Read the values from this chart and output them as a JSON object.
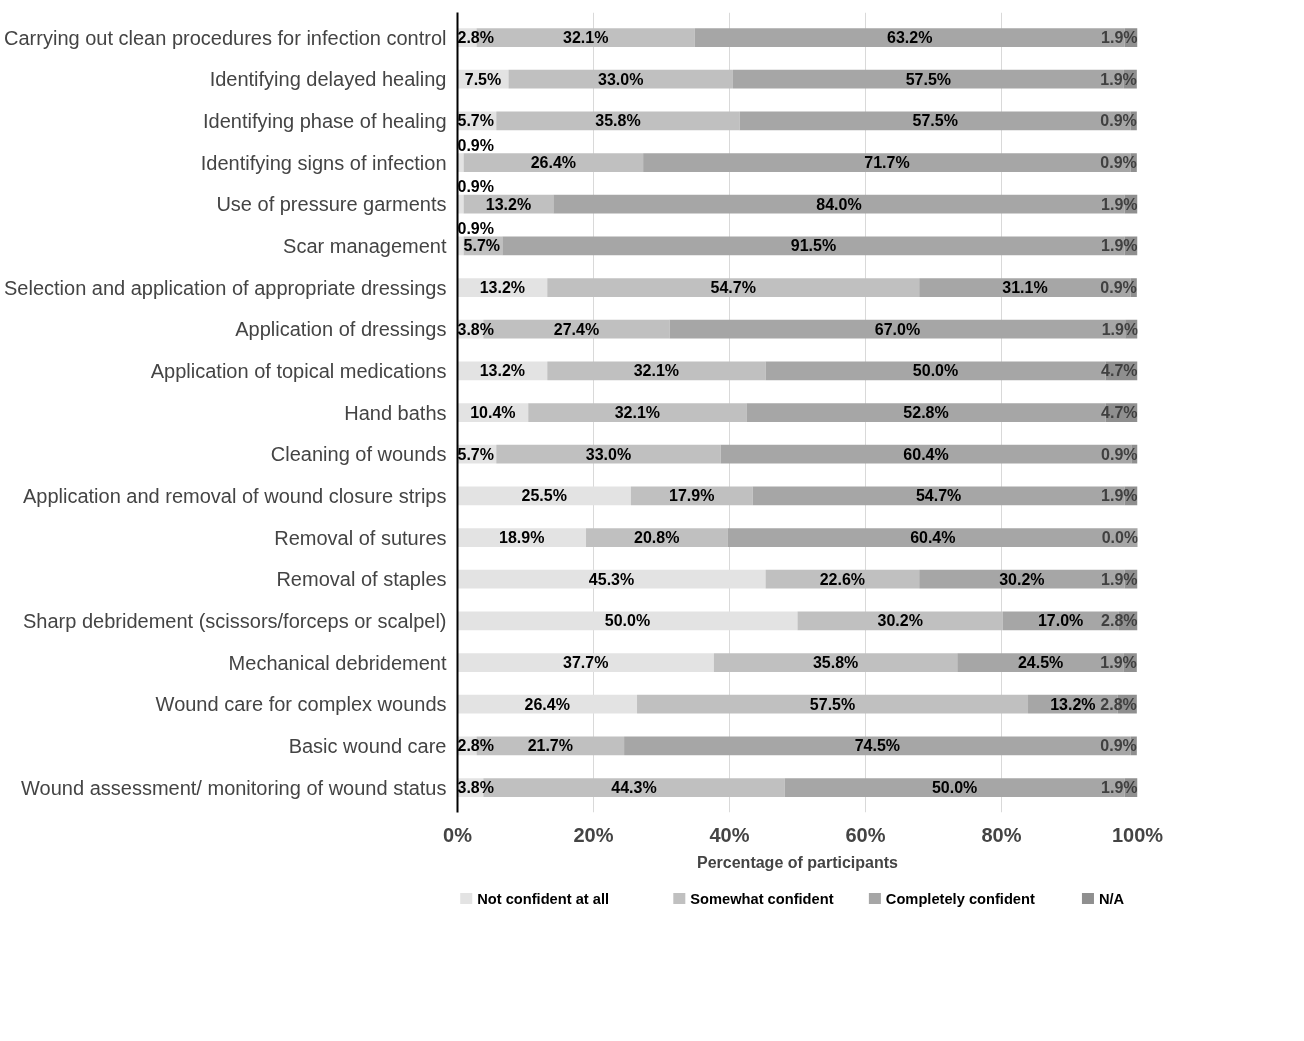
{
  "chart_data": {
    "type": "bar",
    "orientation": "horizontal",
    "stacked": true,
    "xlabel": "Percentage of participants",
    "categories": [
      "Carrying out clean procedures for infection control",
      "Identifying delayed healing",
      "Identifying phase of healing",
      "Identifying signs of infection",
      "Use of pressure garments",
      "Scar management",
      "Selection and application of appropriate dressings",
      "Application of dressings",
      "Application of topical medications",
      "Hand baths",
      "Cleaning of wounds",
      "Application and removal of wound closure strips",
      "Removal of sutures",
      "Removal of staples",
      "Sharp debridement (scissors/forceps or scalpel)",
      "Mechanical debridement",
      "Wound care for complex wounds",
      "Basic wound care",
      "Wound assessment/ monitoring of wound status"
    ],
    "series": [
      {
        "name": "Not confident at all",
        "color": "#e3e3e3",
        "values": [
          2.8,
          7.5,
          5.7,
          0.9,
          0.9,
          0.9,
          13.2,
          3.8,
          13.2,
          10.4,
          5.7,
          25.5,
          18.9,
          45.3,
          50.0,
          37.7,
          26.4,
          2.8,
          3.8
        ],
        "value_labels": [
          "2.8%",
          "7.5%",
          "5.7%",
          "0.9%",
          "0.9%",
          "0.9%",
          "13.2%",
          "3.8%",
          "13.2%",
          "10.4%",
          "5.7%",
          "25.5%",
          "18.9%",
          "45.3%",
          "50.0%",
          "37.7%",
          "26.4%",
          "2.8%",
          "3.8%"
        ]
      },
      {
        "name": "Somewhat confident",
        "color": "#c0c0c0",
        "values": [
          32.1,
          33.0,
          35.8,
          26.4,
          13.2,
          5.7,
          54.7,
          27.4,
          32.1,
          32.1,
          33.0,
          17.9,
          20.8,
          22.6,
          30.2,
          35.8,
          57.5,
          21.7,
          44.3
        ],
        "value_labels": [
          "32.1%",
          "33.0%",
          "35.8%",
          "26.4%",
          "13.2%",
          "5.7%",
          "54.7%",
          "27.4%",
          "32.1%",
          "32.1%",
          "33.0%",
          "17.9%",
          "20.8%",
          "22.6%",
          "30.2%",
          "35.8%",
          "57.5%",
          "21.7%",
          "44.3%"
        ]
      },
      {
        "name": "Completely confident",
        "color": "#a6a6a6",
        "values": [
          63.2,
          57.5,
          57.5,
          71.7,
          84.0,
          91.5,
          31.1,
          67.0,
          50.0,
          52.8,
          60.4,
          54.7,
          60.4,
          30.2,
          17.0,
          24.5,
          13.2,
          74.5,
          50.0
        ],
        "value_labels": [
          "63.2%",
          "57.5%",
          "57.5%",
          "71.7%",
          "84.0%",
          "91.5%",
          "31.1%",
          "67.0%",
          "50.0%",
          "52.8%",
          "60.4%",
          "54.7%",
          "60.4%",
          "30.2%",
          "17.0%",
          "24.5%",
          "13.2%",
          "74.5%",
          "50.0%"
        ]
      },
      {
        "name": "N/A",
        "color": "#8f8f8f",
        "values": [
          1.9,
          1.9,
          0.9,
          0.9,
          1.9,
          1.9,
          0.9,
          1.9,
          4.7,
          4.7,
          0.9,
          1.9,
          0.0,
          1.9,
          2.8,
          1.9,
          2.8,
          0.9,
          1.9
        ],
        "value_labels": [
          "1.9%",
          "1.9%",
          "0.9%",
          "0.9%",
          "1.9%",
          "1.9%",
          "0.9%",
          "1.9%",
          "4.7%",
          "4.7%",
          "0.9%",
          "1.9%",
          "0.0%",
          "1.9%",
          "2.8%",
          "1.9%",
          "2.8%",
          "0.9%",
          "1.9%"
        ]
      }
    ],
    "xlim": [
      0,
      100
    ],
    "xticks": [
      {
        "value": 0,
        "label": "0%"
      },
      {
        "value": 20,
        "label": "20%"
      },
      {
        "value": 40,
        "label": "40%"
      },
      {
        "value": 60,
        "label": "60%"
      },
      {
        "value": 80,
        "label": "80%"
      },
      {
        "value": 100,
        "label": "100%"
      }
    ],
    "grid": "x",
    "legend": "bottom left"
  }
}
